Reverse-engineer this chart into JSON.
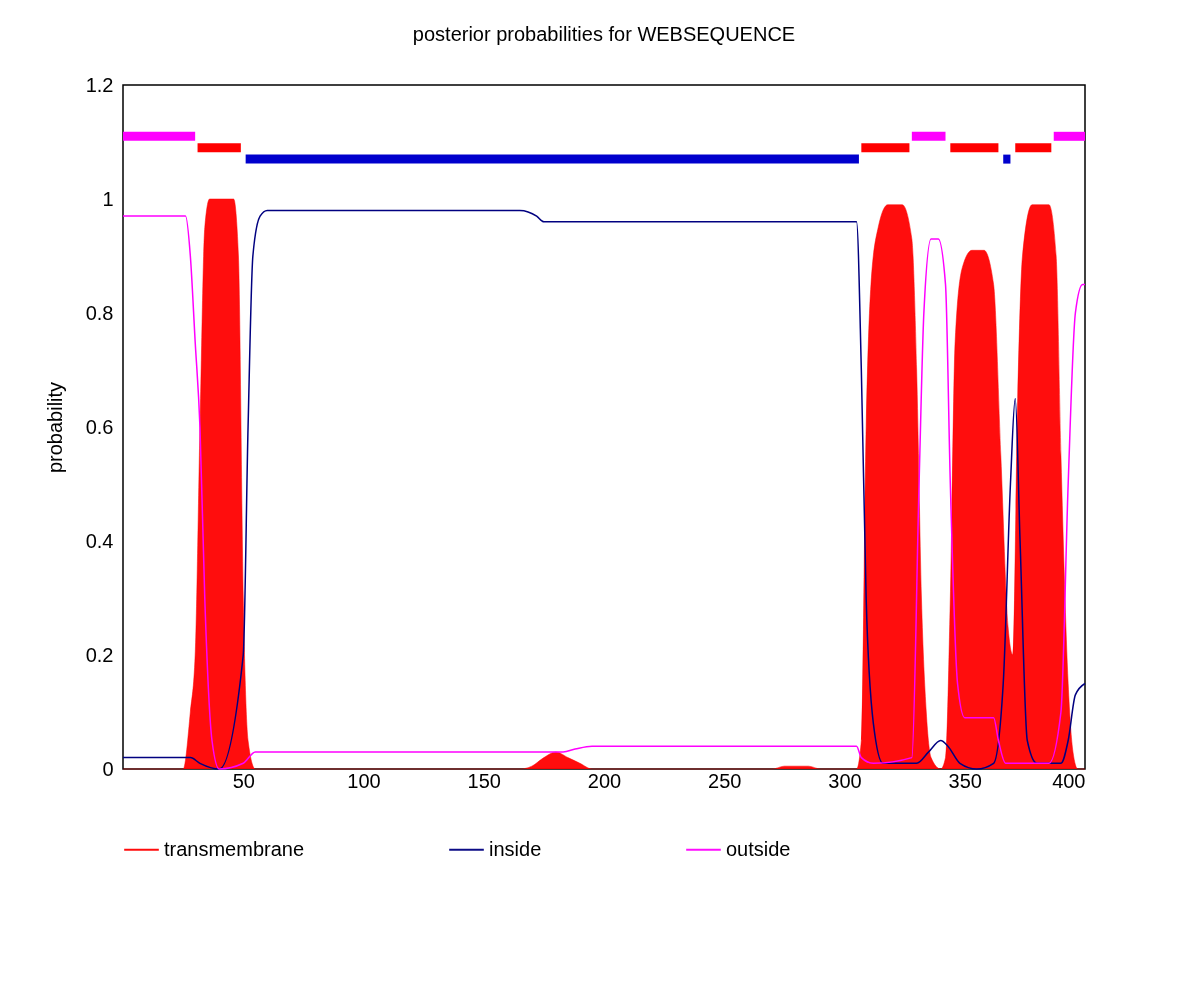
{
  "chart_data": {
    "type": "line",
    "title": "posterior probabilities for WEBSEQUENCE",
    "ylabel": "probability",
    "xlim": [
      0,
      400
    ],
    "xticks": [
      50,
      100,
      150,
      200,
      250,
      300,
      350,
      400
    ],
    "ylim": [
      0,
      1.2
    ],
    "yticks": [
      0,
      0.2,
      0.4,
      0.6,
      0.8,
      1,
      1.2
    ],
    "grid": false,
    "legend": "bottom",
    "series": [
      {
        "name": "transmembrane",
        "type": "area",
        "color": "#ff0000",
        "x": [
          0,
          25,
          28,
          30,
          32,
          34,
          36,
          46,
          48,
          50,
          52,
          55,
          165,
          170,
          175,
          180,
          185,
          190,
          195,
          270,
          275,
          285,
          290,
          305,
          307,
          309,
          311,
          314,
          318,
          324,
          328,
          330,
          332,
          334,
          336,
          340,
          342,
          344,
          346,
          349,
          353,
          358,
          362,
          365,
          368,
          370,
          372,
          374,
          378,
          385,
          388,
          390,
          393,
          395,
          397,
          400
        ],
        "values": [
          0,
          0,
          0.1,
          0.2,
          0.6,
          0.95,
          1,
          1,
          0.9,
          0.3,
          0.05,
          0,
          0,
          0.005,
          0.02,
          0.03,
          0.02,
          0.01,
          0,
          0,
          0.005,
          0.005,
          0,
          0,
          0.05,
          0.6,
          0.85,
          0.95,
          0.99,
          0.99,
          0.93,
          0.7,
          0.3,
          0.1,
          0.02,
          0,
          0.02,
          0.3,
          0.75,
          0.88,
          0.91,
          0.91,
          0.85,
          0.55,
          0.25,
          0.2,
          0.65,
          0.9,
          0.99,
          0.99,
          0.9,
          0.55,
          0.15,
          0.03,
          0,
          0
        ]
      },
      {
        "name": "inside",
        "color": "#000080",
        "x": [
          0,
          28,
          32,
          40,
          50,
          52,
          54,
          57,
          60,
          165,
          172,
          175,
          305,
          307,
          309,
          312,
          316,
          330,
          335,
          340,
          343,
          348,
          355,
          362,
          366,
          369,
          371,
          373,
          376,
          380,
          390,
          393,
          396,
          400
        ],
        "values": [
          0.02,
          0.02,
          0.01,
          0,
          0.2,
          0.6,
          0.9,
          0.97,
          0.98,
          0.98,
          0.97,
          0.96,
          0.96,
          0.7,
          0.3,
          0.08,
          0.01,
          0.01,
          0.03,
          0.05,
          0.04,
          0.01,
          0,
          0.01,
          0.15,
          0.5,
          0.65,
          0.4,
          0.05,
          0.01,
          0.01,
          0.05,
          0.13,
          0.15
        ]
      },
      {
        "name": "outside",
        "color": "#ff00ff",
        "x": [
          0,
          26,
          28,
          30,
          32,
          34,
          37,
          40,
          50,
          55,
          175,
          183,
          188,
          195,
          305,
          307,
          312,
          328,
          331,
          333,
          336,
          339,
          342,
          344,
          347,
          350,
          362,
          364,
          367,
          385,
          390,
          393,
          396,
          399,
          400
        ],
        "values": [
          0.97,
          0.97,
          0.9,
          0.75,
          0.6,
          0.3,
          0.05,
          0,
          0.01,
          0.03,
          0.03,
          0.03,
          0.035,
          0.04,
          0.04,
          0.02,
          0.01,
          0.02,
          0.5,
          0.8,
          0.93,
          0.93,
          0.85,
          0.5,
          0.15,
          0.09,
          0.09,
          0.05,
          0.01,
          0.01,
          0.1,
          0.5,
          0.8,
          0.85,
          0.85
        ]
      },
      {
        "color": "#ff00ff",
        "x": [
          0,
          30
        ],
        "values": [
          1.11,
          1.11
        ]
      },
      {
        "color": "#ff00ff",
        "x": [
          328,
          342
        ],
        "values": [
          1.11,
          1.11
        ]
      },
      {
        "color": "#ff00ff",
        "x": [
          387,
          400
        ],
        "values": [
          1.11,
          1.11
        ]
      },
      {
        "color": "#ff0000",
        "x": [
          31,
          49
        ],
        "values": [
          1.09,
          1.09
        ]
      },
      {
        "color": "#ff0000",
        "x": [
          307,
          327
        ],
        "values": [
          1.09,
          1.09
        ]
      },
      {
        "color": "#ff0000",
        "x": [
          344,
          364
        ],
        "values": [
          1.09,
          1.09
        ]
      },
      {
        "color": "#ff0000",
        "x": [
          371,
          386
        ],
        "values": [
          1.09,
          1.09
        ]
      },
      {
        "color": "#0000cd",
        "x": [
          51,
          306
        ],
        "values": [
          1.07,
          1.07
        ]
      },
      {
        "color": "#0000cd",
        "x": [
          366,
          369
        ],
        "values": [
          1.07,
          1.07
        ]
      }
    ]
  }
}
